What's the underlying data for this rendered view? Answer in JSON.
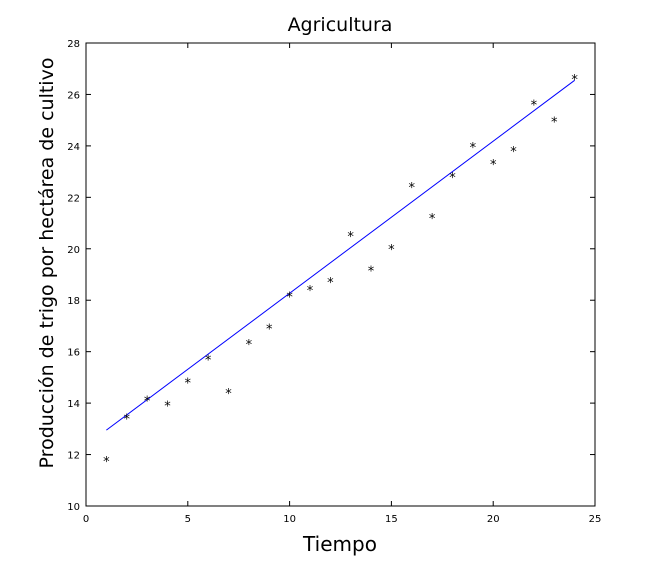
{
  "chart_data": {
    "type": "scatter",
    "title": "Agricultura",
    "xlabel": "Tiempo",
    "ylabel": "Producción de trigo por hectárea de cultivo",
    "xlim": [
      0,
      25
    ],
    "ylim": [
      10,
      28
    ],
    "xticks": [
      0,
      5,
      10,
      15,
      20,
      25
    ],
    "yticks": [
      10,
      12,
      14,
      16,
      18,
      20,
      22,
      24,
      26,
      28
    ],
    "grid": false,
    "legend": "none",
    "points": {
      "x": [
        1,
        2,
        3,
        4,
        5,
        6,
        7,
        8,
        9,
        10,
        11,
        12,
        13,
        14,
        15,
        16,
        17,
        18,
        19,
        20,
        21,
        22,
        23,
        24
      ],
      "y": [
        11.75,
        13.4,
        14.1,
        13.9,
        14.8,
        15.7,
        14.4,
        16.3,
        16.9,
        18.15,
        18.4,
        18.7,
        20.5,
        19.15,
        20.0,
        22.4,
        21.2,
        22.8,
        23.95,
        23.3,
        23.8,
        25.6,
        24.95,
        26.6
      ]
    },
    "fit_line": {
      "x": [
        1,
        24
      ],
      "y": [
        12.95,
        26.55
      ]
    },
    "colors": {
      "points": "#000000",
      "fit_line": "#0000ff",
      "axes": "#000000"
    },
    "marker": "*"
  }
}
